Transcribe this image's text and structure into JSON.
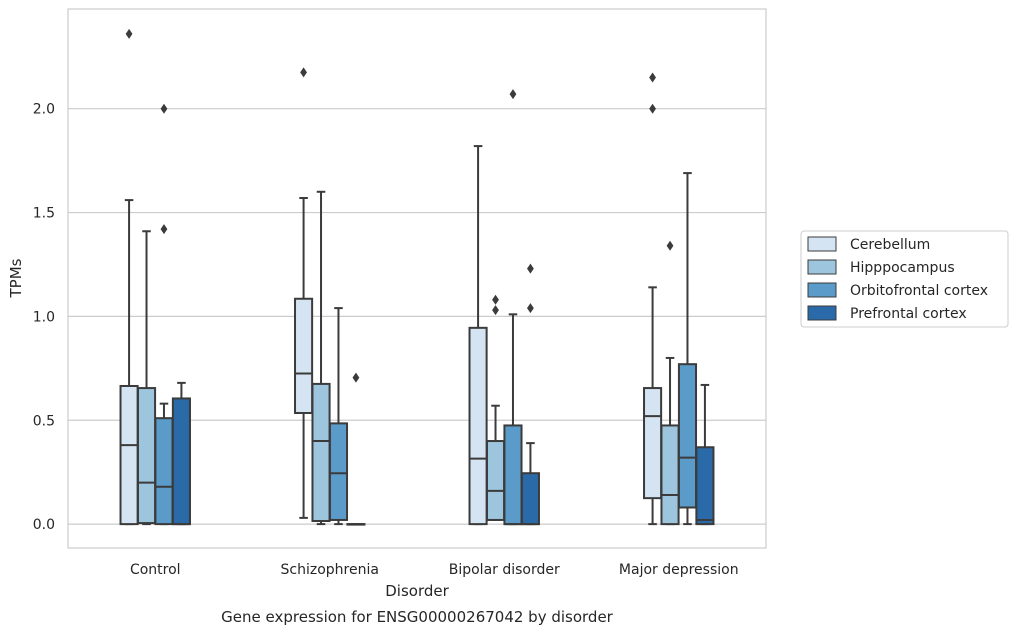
{
  "chart_data": {
    "type": "box",
    "title": "Gene expression for ENSG00000267042 by disorder",
    "xlabel": "Disorder",
    "ylabel": "TPMs",
    "ylim": [
      -0.115,
      2.48
    ],
    "yticks": [
      "0.0",
      "0.5",
      "1.0",
      "1.5",
      "2.0"
    ],
    "grid": true,
    "legend_position": "right, outside plot",
    "categories": [
      "Control",
      "Schizophrenia",
      "Bipolar disorder",
      "Major depression"
    ],
    "series": [
      {
        "name": "Cerebellum",
        "color": "#d5e4f2",
        "boxes": [
          {
            "whislo": 0.0,
            "q1": 0.0,
            "med": 0.38,
            "q3": 0.665,
            "whishi": 1.56,
            "fliers": [
              2.36
            ]
          },
          {
            "whislo": 0.03,
            "q1": 0.535,
            "med": 0.725,
            "q3": 1.085,
            "whishi": 1.57,
            "fliers": [
              2.175
            ]
          },
          {
            "whislo": 0.0,
            "q1": 0.0,
            "med": 0.315,
            "q3": 0.945,
            "whishi": 1.82,
            "fliers": []
          },
          {
            "whislo": 0.0,
            "q1": 0.125,
            "med": 0.52,
            "q3": 0.655,
            "whishi": 1.14,
            "fliers": [
              2.0,
              2.15
            ]
          }
        ]
      },
      {
        "name": "Hipppocampus",
        "color": "#9dc5de",
        "boxes": [
          {
            "whislo": 0.0,
            "q1": 0.005,
            "med": 0.2,
            "q3": 0.655,
            "whishi": 1.41,
            "fliers": []
          },
          {
            "whislo": 0.0,
            "q1": 0.015,
            "med": 0.4,
            "q3": 0.675,
            "whishi": 1.6,
            "fliers": []
          },
          {
            "whislo": 0.02,
            "q1": 0.02,
            "med": 0.16,
            "q3": 0.4,
            "whishi": 0.57,
            "fliers": [
              1.03,
              1.08
            ]
          },
          {
            "whislo": 0.0,
            "q1": 0.0,
            "med": 0.14,
            "q3": 0.475,
            "whishi": 0.8,
            "fliers": [
              1.34
            ]
          }
        ]
      },
      {
        "name": "Orbitofrontal cortex",
        "color": "#5b9bc9",
        "boxes": [
          {
            "whislo": 0.0,
            "q1": 0.0,
            "med": 0.18,
            "q3": 0.51,
            "whishi": 0.58,
            "fliers": [
              1.42,
              2.0
            ]
          },
          {
            "whislo": 0.0,
            "q1": 0.02,
            "med": 0.245,
            "q3": 0.485,
            "whishi": 1.04,
            "fliers": []
          },
          {
            "whislo": 0.0,
            "q1": 0.0,
            "med": 0.0,
            "q3": 0.475,
            "whishi": 1.01,
            "fliers": [
              2.07
            ]
          },
          {
            "whislo": 0.0,
            "q1": 0.08,
            "med": 0.32,
            "q3": 0.77,
            "whishi": 1.69,
            "fliers": []
          }
        ]
      },
      {
        "name": "Prefrontal cortex",
        "color": "#2b6aa8",
        "boxes": [
          {
            "whislo": 0.0,
            "q1": 0.0,
            "med": 0.0,
            "q3": 0.605,
            "whishi": 0.68,
            "fliers": []
          },
          {
            "whislo": 0.0,
            "q1": 0.0,
            "med": 0.0,
            "q3": 0.0,
            "whishi": 0.0,
            "fliers": [
              0.705
            ]
          },
          {
            "whislo": 0.0,
            "q1": 0.0,
            "med": 0.0,
            "q3": 0.245,
            "whishi": 0.39,
            "fliers": [
              1.04,
              1.23
            ]
          },
          {
            "whislo": 0.0,
            "q1": 0.0,
            "med": 0.02,
            "q3": 0.37,
            "whishi": 0.67,
            "fliers": []
          }
        ]
      }
    ]
  }
}
